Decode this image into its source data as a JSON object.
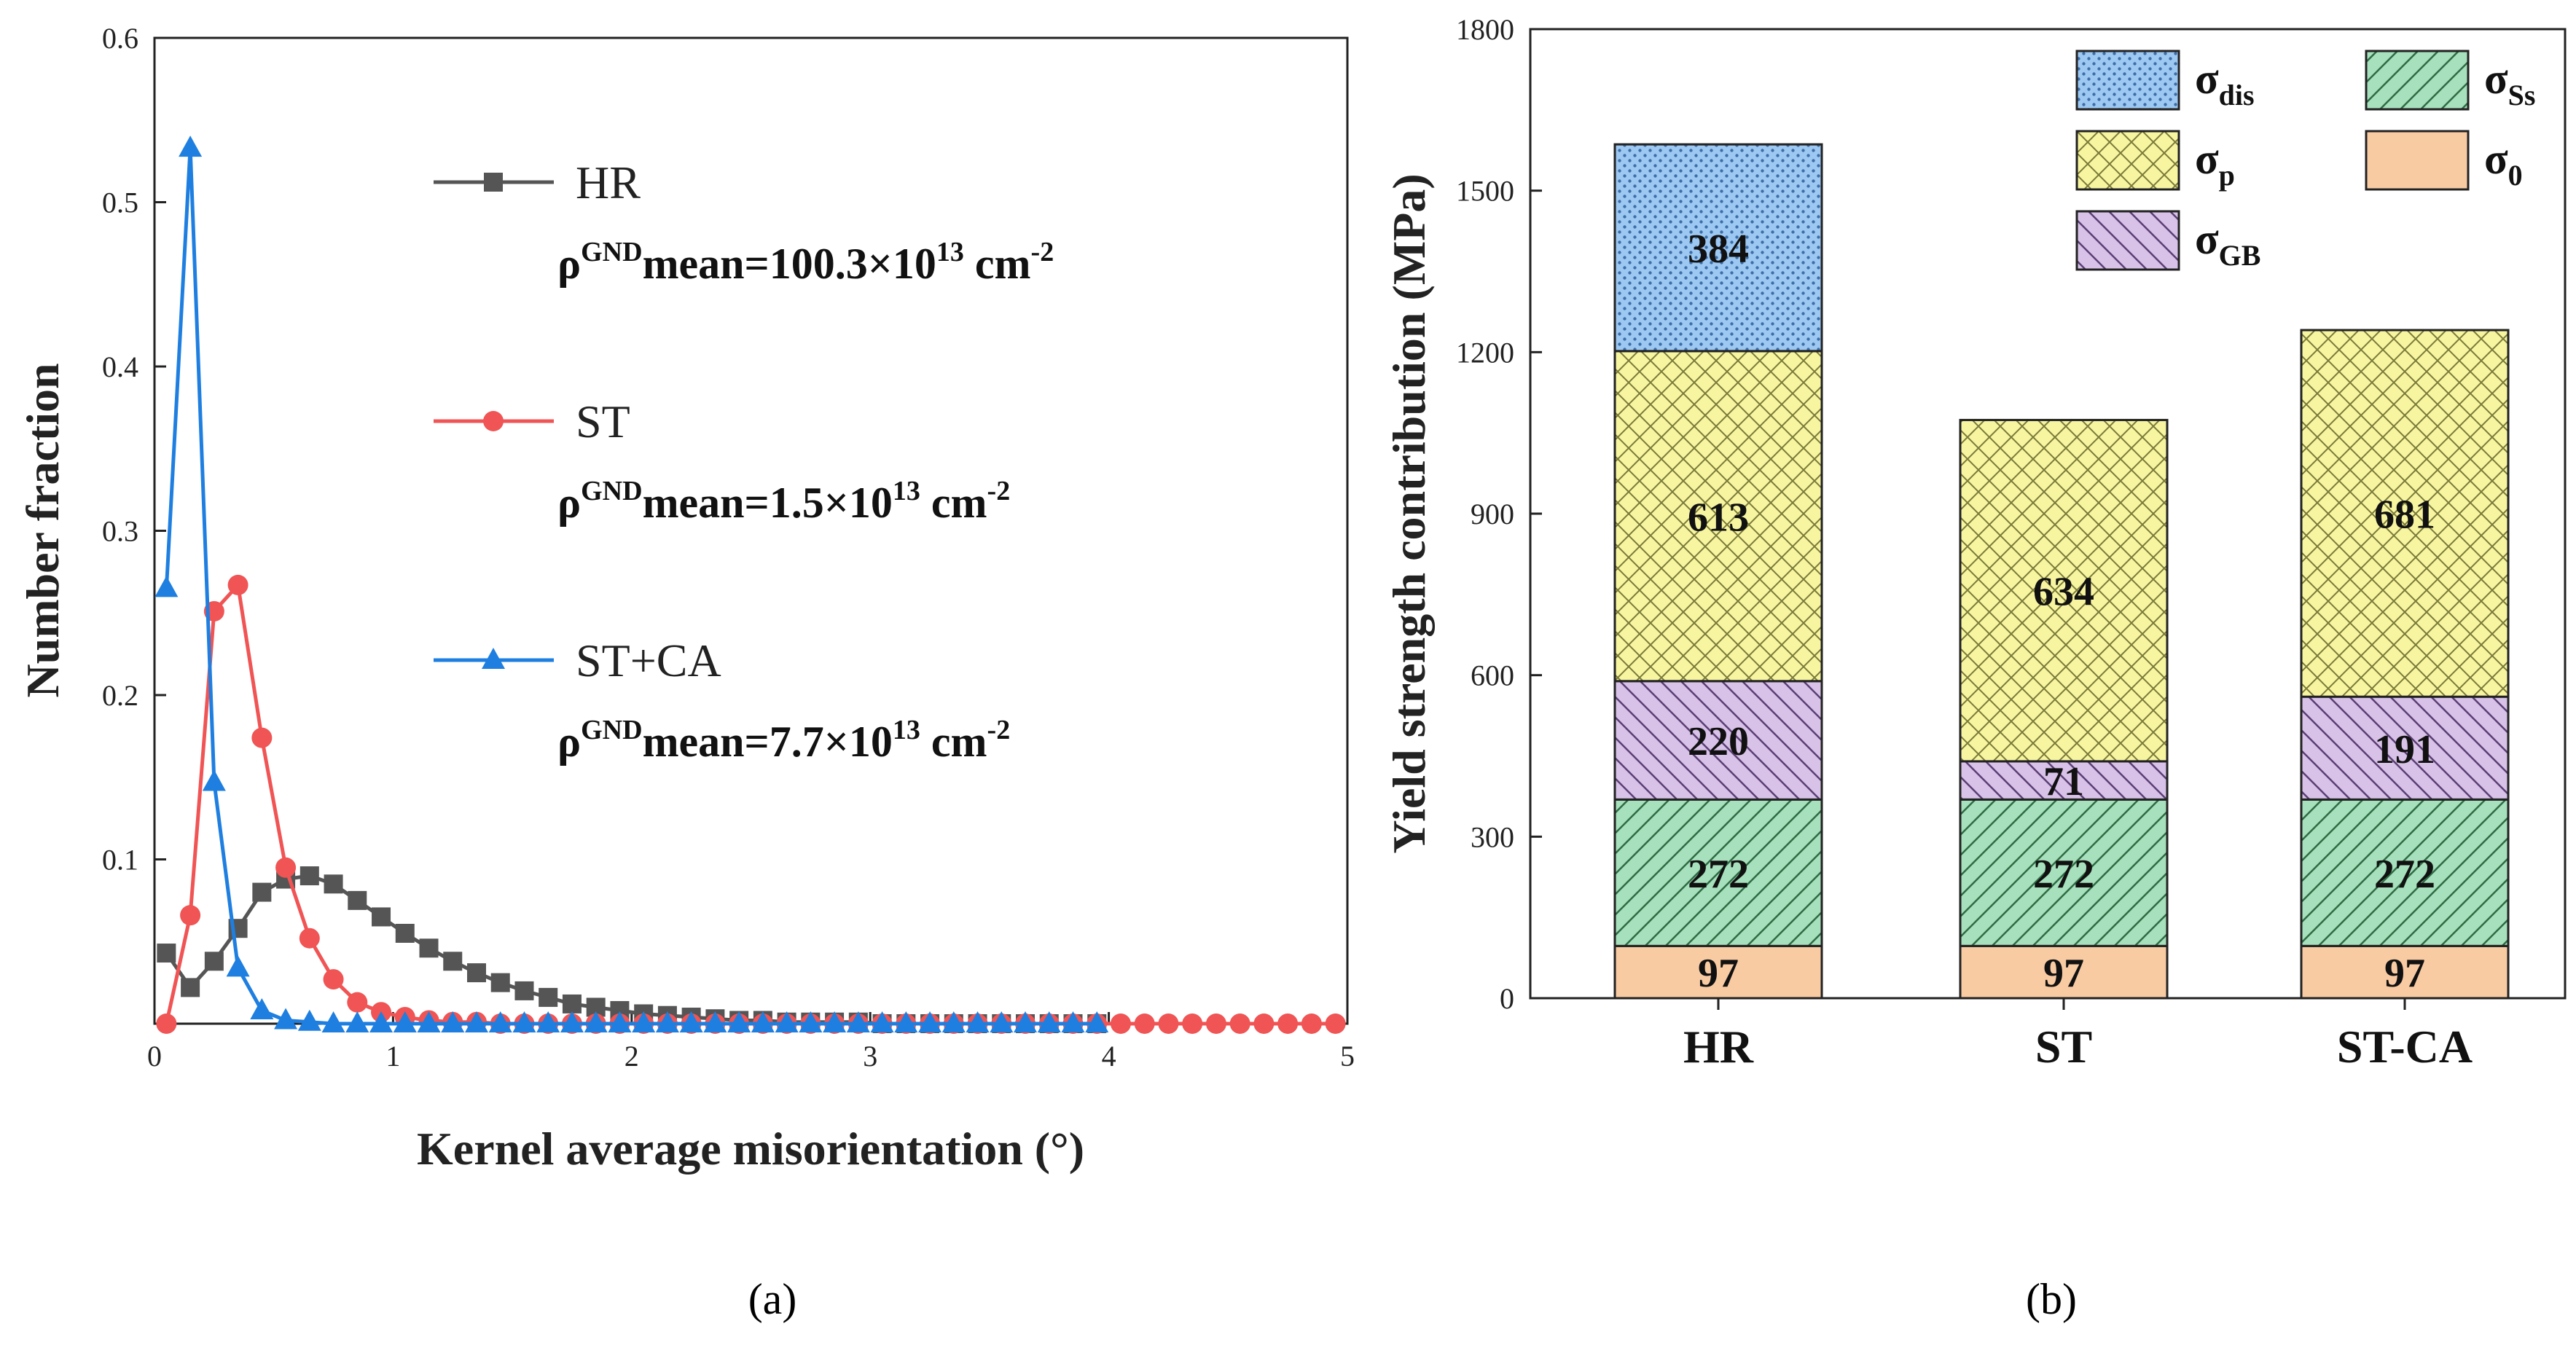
{
  "colors": {
    "HR": "#555555",
    "ST": "#f05454",
    "ST+CA": "#1e7fe0",
    "sigma_dis": "#9dc8f2",
    "sigma_p": "#f7f5a0",
    "sigma_GB": "#d8c2e8",
    "sigma_Ss": "#a6e0bc",
    "sigma_0": "#f9cba3"
  },
  "captions": {
    "a": "(a)",
    "b": "(b)"
  },
  "chart_data": [
    {
      "type": "line",
      "panel": "a",
      "xlabel": "Kernel average misorientation (°)",
      "ylabel": "Number fraction",
      "xlim": [
        0,
        5
      ],
      "ylim": [
        0,
        0.6
      ],
      "x_ticks": [
        "0",
        "1",
        "2",
        "3",
        "4",
        "5"
      ],
      "y_ticks": [
        "0.1",
        "0.2",
        "0.3",
        "0.4",
        "0.5",
        "0.6"
      ],
      "series": [
        {
          "name": "HR",
          "marker": "square",
          "color_key": "HR",
          "density_text": {
            "rho": "ρ",
            "sup1": "GND",
            "main": "mean=100.3×10",
            "sup2": "13",
            "unit": " cm",
            "sup3": "-2"
          },
          "x": [
            0.05,
            0.15,
            0.25,
            0.35,
            0.45,
            0.55,
            0.65,
            0.75,
            0.85,
            0.95,
            1.05,
            1.15,
            1.25,
            1.35,
            1.45,
            1.55,
            1.65,
            1.75,
            1.85,
            1.95,
            2.05,
            2.15,
            2.25,
            2.35,
            2.45,
            2.55,
            2.65,
            2.75,
            2.85,
            2.95,
            3.05,
            3.15,
            3.25,
            3.35,
            3.45,
            3.55,
            3.65,
            3.75,
            3.85,
            3.95
          ],
          "y": [
            0.043,
            0.022,
            0.038,
            0.058,
            0.08,
            0.088,
            0.09,
            0.085,
            0.075,
            0.065,
            0.055,
            0.046,
            0.038,
            0.031,
            0.025,
            0.02,
            0.016,
            0.012,
            0.01,
            0.008,
            0.006,
            0.005,
            0.004,
            0.003,
            0.002,
            0.002,
            0.001,
            0.001,
            0.001,
            0.001,
            0.0,
            0.0,
            0.0,
            0.0,
            0.0,
            0.0,
            0.0,
            0.0,
            0.0,
            0.0
          ]
        },
        {
          "name": "ST",
          "marker": "circle",
          "color_key": "ST",
          "density_text": {
            "rho": "ρ",
            "sup1": "GND",
            "main": "mean=1.5×10",
            "sup2": "13",
            "unit": " cm",
            "sup3": "-2"
          },
          "x": [
            0.05,
            0.15,
            0.25,
            0.35,
            0.45,
            0.55,
            0.65,
            0.75,
            0.85,
            0.95,
            1.05,
            1.15,
            1.25,
            1.35,
            1.45,
            1.55,
            1.65,
            1.75,
            1.85,
            1.95,
            2.05,
            2.15,
            2.25,
            2.35,
            2.45,
            2.55,
            2.65,
            2.75,
            2.85,
            2.95,
            3.05,
            3.15,
            3.25,
            3.35,
            3.45,
            3.55,
            3.65,
            3.75,
            3.85,
            3.95,
            4.05,
            4.15,
            4.25,
            4.35,
            4.45,
            4.55,
            4.65,
            4.75,
            4.85,
            4.95
          ],
          "y": [
            0.0,
            0.066,
            0.251,
            0.267,
            0.174,
            0.095,
            0.052,
            0.027,
            0.013,
            0.007,
            0.004,
            0.002,
            0.001,
            0.001,
            0.0,
            0.0,
            0.0,
            0.0,
            0.0,
            0.0,
            0.0,
            0.0,
            0.0,
            0.0,
            0.0,
            0.0,
            0.0,
            0.0,
            0.0,
            0.0,
            0.0,
            0.0,
            0.0,
            0.0,
            0.0,
            0.0,
            0.0,
            0.0,
            0.0,
            0.0,
            0.0,
            0.0,
            0.0,
            0.0,
            0.0,
            0.0,
            0.0,
            0.0,
            0.0,
            0.0
          ]
        },
        {
          "name": "ST+CA",
          "marker": "triangle",
          "color_key": "ST+CA",
          "density_text": {
            "rho": "ρ",
            "sup1": "GND",
            "main": "mean=7.7×10",
            "sup2": "13",
            "unit": " cm",
            "sup3": "-2"
          },
          "x": [
            0.05,
            0.15,
            0.25,
            0.35,
            0.45,
            0.55,
            0.65,
            0.75,
            0.85,
            0.95,
            1.05,
            1.15,
            1.25,
            1.35,
            1.45,
            1.55,
            1.65,
            1.75,
            1.85,
            1.95,
            2.05,
            2.15,
            2.25,
            2.35,
            2.45,
            2.55,
            2.65,
            2.75,
            2.85,
            2.95,
            3.05,
            3.15,
            3.25,
            3.35,
            3.45,
            3.55,
            3.65,
            3.75,
            3.85,
            3.95
          ],
          "y": [
            0.265,
            0.533,
            0.147,
            0.034,
            0.008,
            0.002,
            0.001,
            0.0,
            0.0,
            0.0,
            0.0,
            0.0,
            0.0,
            0.0,
            0.0,
            0.0,
            0.0,
            0.0,
            0.0,
            0.0,
            0.0,
            0.0,
            0.0,
            0.0,
            0.0,
            0.0,
            0.0,
            0.0,
            0.0,
            0.0,
            0.0,
            0.0,
            0.0,
            0.0,
            0.0,
            0.0,
            0.0,
            0.0,
            0.0,
            0.0
          ]
        }
      ]
    },
    {
      "type": "bar",
      "stacked": true,
      "panel": "b",
      "ylabel": "Yield strength contribution (MPa)",
      "ylim": [
        0,
        1800
      ],
      "y_ticks": [
        "0",
        "300",
        "600",
        "900",
        "1200",
        "1500",
        "1800"
      ],
      "categories": [
        "HR",
        "ST",
        "ST-CA"
      ],
      "series": [
        {
          "name": "σ0",
          "sym": "σ",
          "sub": "0",
          "color_key": "sigma_0",
          "pattern": "none",
          "values": [
            97,
            97,
            97
          ]
        },
        {
          "name": "σSs",
          "sym": "σ",
          "sub": "Ss",
          "color_key": "sigma_Ss",
          "pattern": "diag",
          "values": [
            272,
            272,
            272
          ]
        },
        {
          "name": "σGB",
          "sym": "σ",
          "sub": "GB",
          "color_key": "sigma_GB",
          "pattern": "back-diag",
          "values": [
            220,
            71,
            191
          ]
        },
        {
          "name": "σp",
          "sym": "σ",
          "sub": "p",
          "color_key": "sigma_p",
          "pattern": "cross",
          "values": [
            613,
            634,
            681
          ]
        },
        {
          "name": "σdis",
          "sym": "σ",
          "sub": "dis",
          "color_key": "sigma_dis",
          "pattern": "dots",
          "values": [
            384,
            0,
            0
          ]
        }
      ]
    }
  ]
}
